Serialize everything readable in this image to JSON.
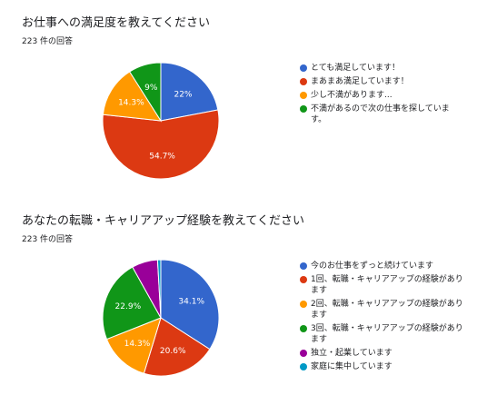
{
  "chart_data": [
    {
      "type": "pie",
      "title": "お仕事への満足度を教えてください",
      "subtitle": "223 件の回答",
      "slices": [
        {
          "label": "とても満足しています！",
          "value": 22,
          "display": "22%",
          "color": "#3366cc"
        },
        {
          "label": "まあまあ満足しています！",
          "value": 54.7,
          "display": "54.7%",
          "color": "#dc3912"
        },
        {
          "label": "少し不満があります...",
          "value": 14.3,
          "display": "14.3%",
          "color": "#ff9900"
        },
        {
          "label": "不満があるので次の仕事を探しています。",
          "value": 9,
          "display": "9%",
          "color": "#109618"
        }
      ],
      "legend_position": "right"
    },
    {
      "type": "pie",
      "title": "あなたの転職・キャリアアップ経験を教えてください",
      "subtitle": "223 件の回答",
      "slices": [
        {
          "label": "今のお仕事をずっと続けています",
          "value": 34.1,
          "display": "34.1%",
          "color": "#3366cc"
        },
        {
          "label": "1回、転職・キャリアアップの経験があります",
          "value": 20.6,
          "display": "20.6%",
          "color": "#dc3912"
        },
        {
          "label": "2回、転職・キャリアアップの経験があります",
          "value": 14.3,
          "display": "14.3%",
          "color": "#ff9900"
        },
        {
          "label": "3回、転職・キャリアアップの経験があります",
          "value": 22.9,
          "display": "22.9%",
          "color": "#109618"
        },
        {
          "label": "独立・起業しています",
          "value": 7.2,
          "display": "",
          "color": "#990099"
        },
        {
          "label": "家庭に集中しています",
          "value": 0.9,
          "display": "",
          "color": "#0099c6"
        }
      ],
      "legend_position": "right"
    }
  ]
}
